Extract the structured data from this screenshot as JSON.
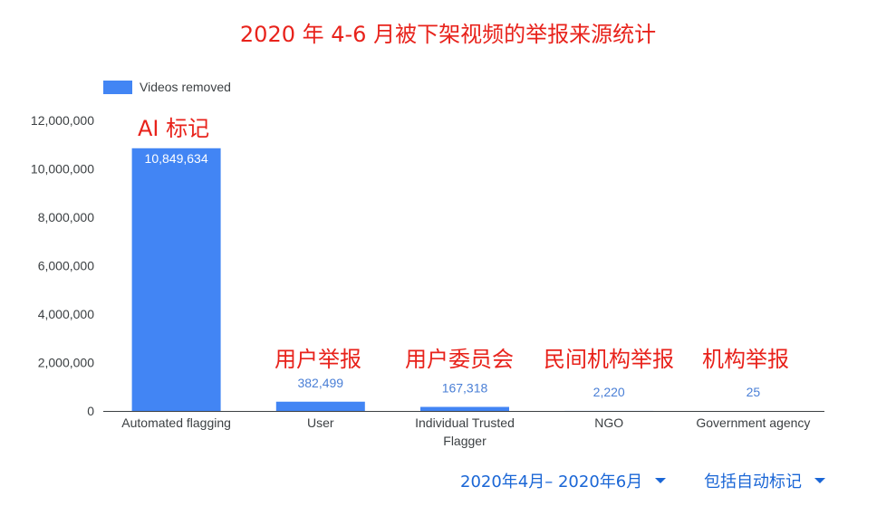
{
  "title": "2020 年 4-6 月被下架视频的举报来源统计",
  "legend": {
    "label": "Videos removed",
    "color": "#4285f4"
  },
  "annotations": [
    "AI 标记",
    "用户举报",
    "用户委员会",
    "民间机构举报",
    "机构举报"
  ],
  "filters": {
    "date_range": "2020年4月– 2020年6月",
    "type": "包括自动标记"
  },
  "chart_data": {
    "type": "bar",
    "categories": [
      "Automated flagging",
      "User",
      "Individual Trusted Flagger",
      "NGO",
      "Government agency"
    ],
    "series": [
      {
        "name": "Videos removed",
        "values": [
          10849634,
          382499,
          167318,
          2220,
          25
        ],
        "value_labels": [
          "10,849,634",
          "382,499",
          "167,318",
          "2,220",
          "25"
        ]
      }
    ],
    "yticks": [
      "0",
      "2,000,000",
      "4,000,000",
      "6,000,000",
      "8,000,000",
      "10,000,000",
      "12,000,000"
    ],
    "ylim": [
      0,
      12000000
    ],
    "bar_color": "#4285f4",
    "value_label_color": "#4a7fd6",
    "grid": false,
    "legend_position": "top-left"
  }
}
